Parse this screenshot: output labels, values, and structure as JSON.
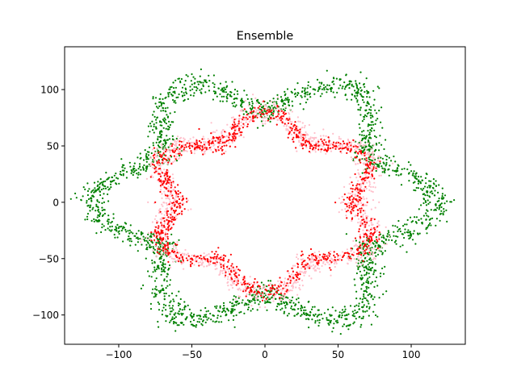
{
  "chart_data": {
    "type": "scatter",
    "title": "Ensemble",
    "xlabel": "",
    "ylabel": "",
    "xlim": [
      -137,
      137
    ],
    "ylim": [
      -126,
      138
    ],
    "x_ticks": [
      -100,
      -50,
      0,
      50,
      100
    ],
    "y_ticks": [
      -100,
      -50,
      0,
      50,
      100
    ],
    "grid": false,
    "legend": "none",
    "series": [
      {
        "color": "#008000",
        "shape": "noisy six-lobed ring, outer",
        "center": [
          0,
          0
        ],
        "base_radius": 100,
        "lobes": 6,
        "lobe_amplitude": 17,
        "phase_deg": 0,
        "radial_noise": 6,
        "approx_points": 2200,
        "anchor_points": [
          [
            -110,
            0
          ],
          [
            110,
            0
          ],
          [
            -55,
            95
          ],
          [
            55,
            95
          ],
          [
            -55,
            -95
          ],
          [
            55,
            -95
          ],
          [
            -75,
            45
          ],
          [
            75,
            -45
          ]
        ]
      },
      {
        "color": "#ffc0cb",
        "shape": "noisy six-lobed ring, inner",
        "center": [
          0,
          0
        ],
        "base_radius": 72,
        "lobes": 6,
        "lobe_amplitude": 9,
        "phase_deg": 30,
        "radial_noise": 5,
        "approx_points": 1500,
        "anchor_points": [
          [
            -80,
            0
          ],
          [
            78,
            0
          ],
          [
            0,
            75
          ],
          [
            0,
            -75
          ],
          [
            -45,
            65
          ],
          [
            45,
            -65
          ]
        ]
      },
      {
        "color": "#ff0000",
        "shape": "noisy six-lobed ring, inner",
        "center": [
          0,
          0
        ],
        "base_radius": 70,
        "lobes": 6,
        "lobe_amplitude": 10,
        "phase_deg": 30,
        "radial_noise": 4,
        "approx_points": 1100,
        "anchor_points": [
          [
            -75,
            0
          ],
          [
            70,
            0
          ],
          [
            -45,
            65
          ],
          [
            45,
            -60
          ],
          [
            -35,
            -50
          ],
          [
            35,
            50
          ]
        ]
      }
    ]
  }
}
